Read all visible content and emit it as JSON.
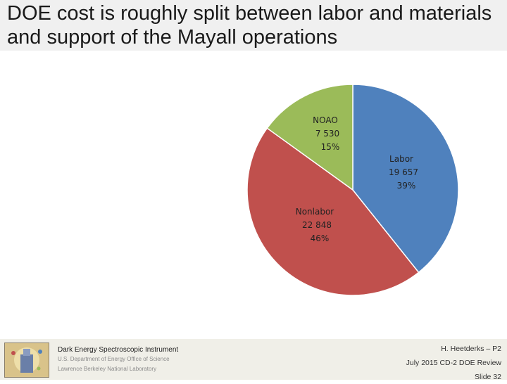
{
  "title": "DOE cost is roughly split between labor and materials and support of the Mayall operations",
  "chart_data": {
    "type": "pie",
    "slices": [
      {
        "name": "Labor",
        "value": 19657,
        "value_label": "19 657",
        "percent_label": "39%",
        "color": "#4f81bd"
      },
      {
        "name": "Nonlabor",
        "value": 22848,
        "value_label": "22 848",
        "percent_label": "46%",
        "color": "#c0504d"
      },
      {
        "name": "NOAO",
        "value": 7530,
        "value_label": "7 530",
        "percent_label": "15%",
        "color": "#9bbb59"
      }
    ],
    "start_at": "12 o'clock",
    "direction": "clockwise",
    "slice_border_color": "#ffffff"
  },
  "footer": {
    "org": "Dark Energy Spectroscopic Instrument",
    "dept": "U.S. Department of Energy Office of Science",
    "lab": "Lawrence Berkeley National Laboratory",
    "presenter": "H. Heetderks – P2",
    "review": "July 2015 CD-2 DOE Review",
    "slide": "Slide 32"
  }
}
